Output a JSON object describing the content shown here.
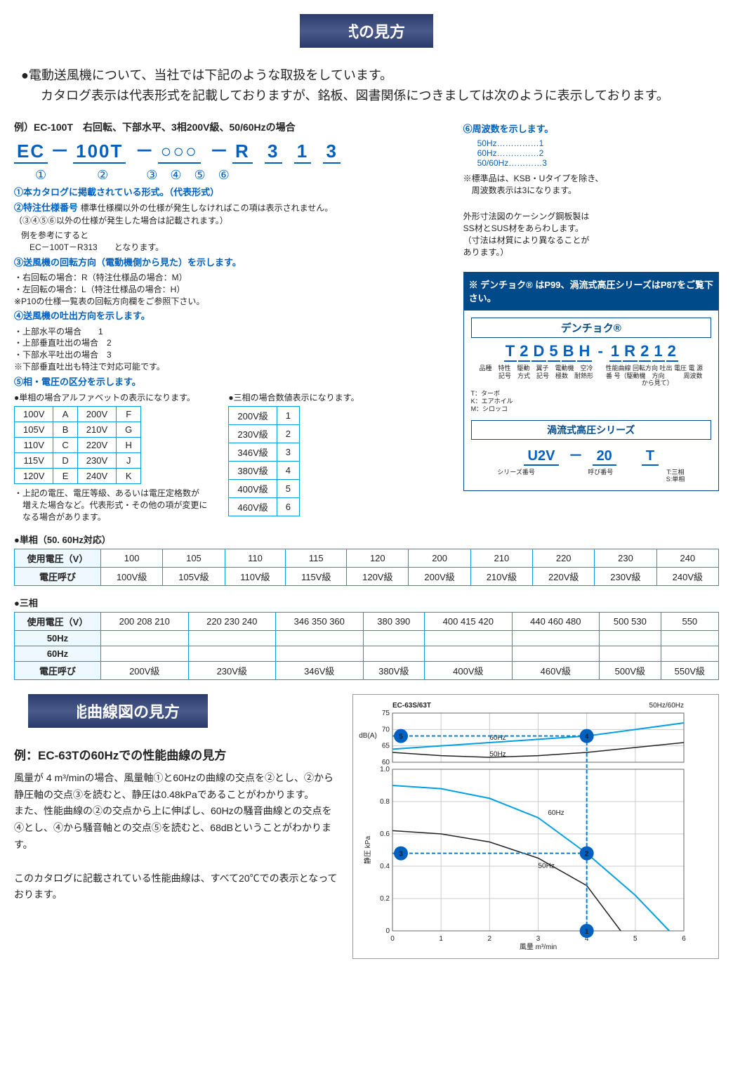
{
  "banner1": "形式の見方",
  "intro_l1": "●電動送風機について、当社では下記のような取扱をしています。",
  "intro_l2": "カタログ表示は代表形式を記載しておりますが、銘板、図書関係につきましては次のように表示しております。",
  "example_label": "例）EC-100T　右回転、下部水平、3相200V級、50/60Hzの場合",
  "model_parts": {
    "a": "EC",
    "b": "100T",
    "c": "○○○",
    "d": "R",
    "e": "3",
    "f": "1",
    "g": "3"
  },
  "circled": "①　　　　②　　　③　④　⑤　⑥",
  "items": {
    "i1": "①本カタログに掲載されている形式。（代表形式）",
    "i2": "②特注仕様番号",
    "i2b": "標準仕様欄以外の仕様が発生しなければこの項は表示されません。\n（③④⑤⑥以外の仕様が発生した場合は記載されます。）",
    "i2c": "例を参考にすると\n　EC－100T－R313　　となります。",
    "i3": "③送風機の回転方向（電動機側から見た）を示します。",
    "i3b": "・右回転の場合：R（特注仕様品の場合：M）\n・左回転の場合：L（特注仕様品の場合：H）\n※P10の仕様一覧表の回転方向欄をご参照下さい。",
    "i4": "④送風機の吐出方向を示します。",
    "i4b": "・上部水平の場合　　1\n・上部垂直吐出の場合　2\n・下部水平吐出の場合　3\n※下部垂直吐出も特注で対応可能です。",
    "i5": "⑤相・電圧の区分を示します。",
    "i5_single": "●単相の場合アルファベットの表示になります。",
    "i5_three": "●三相の場合数値表示になります。"
  },
  "i6_head": "⑥周波数を示します。",
  "i6_rows": {
    "r1": "50Hz……………1",
    "r2": "60Hz……………2",
    "r3": "50/60Hz…………3"
  },
  "i6_note": "※標準品は、KSB・Uタイプを除き、\n　周波数表示は3になります。",
  "right_note": "外形寸法図のケーシング鋼板製は\nSS材とSUS材をあらわします。\n（寸法は材質により異なることが\nあります。）",
  "note_box": "※ デンチョク® はP99、渦流式高圧シリーズはP87をご覧下さい。",
  "denchoku": {
    "title": "デンチョク®",
    "code": {
      "a": "T",
      "b": "2",
      "c": "D",
      "d": "5",
      "e": "B",
      "f": "H",
      "g": "1",
      "h": "R",
      "i": "2",
      "j": "1",
      "k": "2"
    },
    "labels": "品種　特性　駆動　翼子　電動機　空冷　　性能曲線 回転方向 吐出 電圧 電 源\n　　　記号　方式　記号　極数　耐熱形　　番 号（駆動機　方向　　　周波数\n　　　　　　　　　　　　　　　　　　　　　から見て）",
    "tk": "T：ターボ\nK：エアホイル\nM：シロッコ",
    "uzuryu": "渦流式高圧シリーズ",
    "u2v": {
      "a": "U2V",
      "b": "20",
      "c": "T"
    },
    "u2v_labels": {
      "a": "シリーズ番号",
      "b": "呼び番号",
      "c": "T:三相\nS:単相"
    }
  },
  "single_table": {
    "rows": [
      [
        "100V",
        "A",
        "200V",
        "F"
      ],
      [
        "105V",
        "B",
        "210V",
        "G"
      ],
      [
        "110V",
        "C",
        "220V",
        "H"
      ],
      [
        "115V",
        "D",
        "230V",
        "J"
      ],
      [
        "120V",
        "E",
        "240V",
        "K"
      ]
    ]
  },
  "single_note": "・上記の電圧、電圧等級、あるいは電圧定格数が\n　増えた場合など。代表形式・その他の項が変更に\n　なる場合があります。",
  "three_table": {
    "rows": [
      [
        "200V級",
        "1"
      ],
      [
        "230V級",
        "2"
      ],
      [
        "346V級",
        "3"
      ],
      [
        "380V級",
        "4"
      ],
      [
        "400V級",
        "5"
      ],
      [
        "460V級",
        "6"
      ]
    ]
  },
  "wide1_label": "●単相（50. 60Hz対応）",
  "wide1": {
    "h": [
      "使用電圧（V）",
      "100",
      "105",
      "110",
      "115",
      "120",
      "200",
      "210",
      "220",
      "230",
      "240"
    ],
    "r": [
      "電圧呼び",
      "100V級",
      "105V級",
      "110V級",
      "115V級",
      "120V級",
      "200V級",
      "210V級",
      "220V級",
      "230V級",
      "240V級"
    ]
  },
  "wide2_label": "●三相",
  "wide2": {
    "h": [
      "使用電圧（V）",
      "200 208 210",
      "220 230 240",
      "346 350 360",
      "380 390",
      "400 415 420",
      "440 460 480",
      "500 530",
      "550"
    ],
    "r1": [
      "50Hz",
      "",
      "",
      "",
      "",
      "",
      "",
      "",
      ""
    ],
    "r2": [
      "60Hz",
      "",
      "",
      "",
      "",
      "",
      "",
      "",
      ""
    ],
    "r3": [
      "電圧呼び",
      "200V級",
      "230V級",
      "346V級",
      "380V級",
      "400V級",
      "460V級",
      "500V級",
      "550V級"
    ]
  },
  "banner2": "性能曲線図の見方",
  "perf_title": "例：EC-63Tの60Hzでの性能曲線の見方",
  "perf_text": "風量が 4 m³/minの場合、風量軸①と60Hzの曲線の交点を②とし、②から静圧軸の交点③を読むと、静圧は0.48kPaであることがわかります。\nまた、性能曲線の②の交点から上に伸ばし、60Hzの騒音曲線との交点を④とし、④から騒音軸との交点⑤を読むと、68dBということがわかります。\n\nこのカタログに記載されている性能曲線は、すべて20℃での表示となっております。",
  "chart": {
    "title": "EC-63S/63T",
    "hz": "50Hz/60Hz",
    "db_axis": "dB(A)",
    "db_ticks": [
      60,
      65,
      70,
      75
    ],
    "kpa_axis": "静圧 kPa",
    "kpa_ticks": [
      0,
      0.2,
      0.4,
      0.6,
      0.8,
      1.0
    ],
    "x_axis": "風量 m³/min",
    "x_ticks": [
      0,
      1,
      2,
      3,
      4,
      5,
      6
    ],
    "curves": {
      "db50": [
        [
          0,
          63
        ],
        [
          1,
          62
        ],
        [
          2,
          61.5
        ],
        [
          3,
          62
        ],
        [
          4,
          63
        ],
        [
          5,
          64.5
        ],
        [
          6,
          66
        ]
      ],
      "db60": [
        [
          0,
          64
        ],
        [
          1,
          65
        ],
        [
          2,
          66
        ],
        [
          3,
          67
        ],
        [
          4,
          68
        ],
        [
          5,
          70
        ],
        [
          6,
          72
        ]
      ],
      "p50": [
        [
          0,
          0.62
        ],
        [
          1,
          0.6
        ],
        [
          2,
          0.55
        ],
        [
          3,
          0.45
        ],
        [
          4,
          0.28
        ],
        [
          4.7,
          0
        ]
      ],
      "p60": [
        [
          0,
          0.9
        ],
        [
          1,
          0.88
        ],
        [
          2,
          0.82
        ],
        [
          3,
          0.7
        ],
        [
          4,
          0.48
        ],
        [
          5,
          0.22
        ],
        [
          5.7,
          0
        ]
      ]
    },
    "markers": {
      "m1": [
        4,
        0
      ],
      "m2": [
        4,
        0.48
      ],
      "m3": [
        0,
        0.48
      ],
      "m4": [
        4,
        68
      ],
      "m5": [
        0,
        68
      ]
    },
    "colors": {
      "grid": "#cccccc",
      "c50": "#222222",
      "c60": "#00a0e0",
      "guide": "#0080d0"
    }
  }
}
